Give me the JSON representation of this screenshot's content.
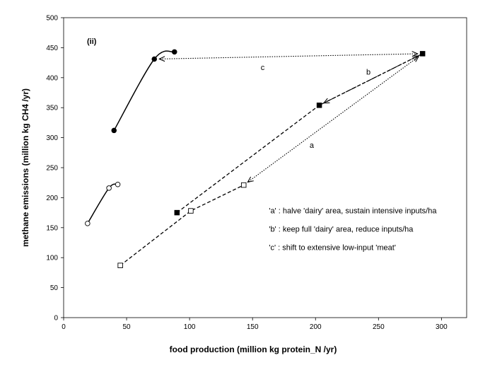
{
  "chart_data": {
    "type": "scatter",
    "panel_label": "(ii)",
    "xlabel": "food production (million kg protein_N /yr)",
    "ylabel": "methane emissions (million kg CH4 /yr)",
    "xlim": [
      0,
      320
    ],
    "ylim": [
      0,
      500
    ],
    "xticks": [
      0,
      50,
      100,
      150,
      200,
      250,
      300
    ],
    "yticks": [
      0,
      50,
      100,
      150,
      200,
      250,
      300,
      350,
      400,
      450,
      500
    ],
    "grid": false,
    "series": [
      {
        "marker": "circle-filled",
        "line": "solid",
        "points": [
          [
            40,
            312
          ],
          [
            72,
            431
          ],
          [
            88,
            443
          ]
        ]
      },
      {
        "marker": "circle-open",
        "line": "solid",
        "points": [
          [
            19,
            157
          ],
          [
            36,
            216
          ],
          [
            43,
            222
          ]
        ]
      },
      {
        "marker": "square-filled",
        "line": "dashed",
        "points": [
          [
            90,
            175
          ],
          [
            203,
            354
          ],
          [
            285,
            440
          ]
        ]
      },
      {
        "marker": "square-open",
        "line": "dashed",
        "points": [
          [
            45,
            87
          ],
          [
            101,
            178
          ],
          [
            143,
            221
          ]
        ]
      }
    ],
    "arrows": [
      {
        "label": "a",
        "from": [
          285,
          440
        ],
        "to": [
          143,
          221
        ],
        "style": "dotted"
      },
      {
        "label": "b",
        "from": [
          285,
          440
        ],
        "to": [
          203,
          354
        ],
        "style": "dashed"
      },
      {
        "label": "c",
        "from": [
          285,
          440
        ],
        "to": [
          72,
          431
        ],
        "style": "dotted"
      }
    ],
    "arrow_label_positions": [
      {
        "label": "a",
        "x": 197,
        "y": 283
      },
      {
        "label": "b",
        "x": 242,
        "y": 405
      },
      {
        "label": "c",
        "x": 158,
        "y": 413
      }
    ],
    "annotations": [
      "'a' :  halve 'dairy' area, sustain intensive inputs/ha",
      "'b' :  keep full 'dairy' area, reduce inputs/ha",
      "'c' :  shift to extensive low-input 'meat'"
    ]
  }
}
